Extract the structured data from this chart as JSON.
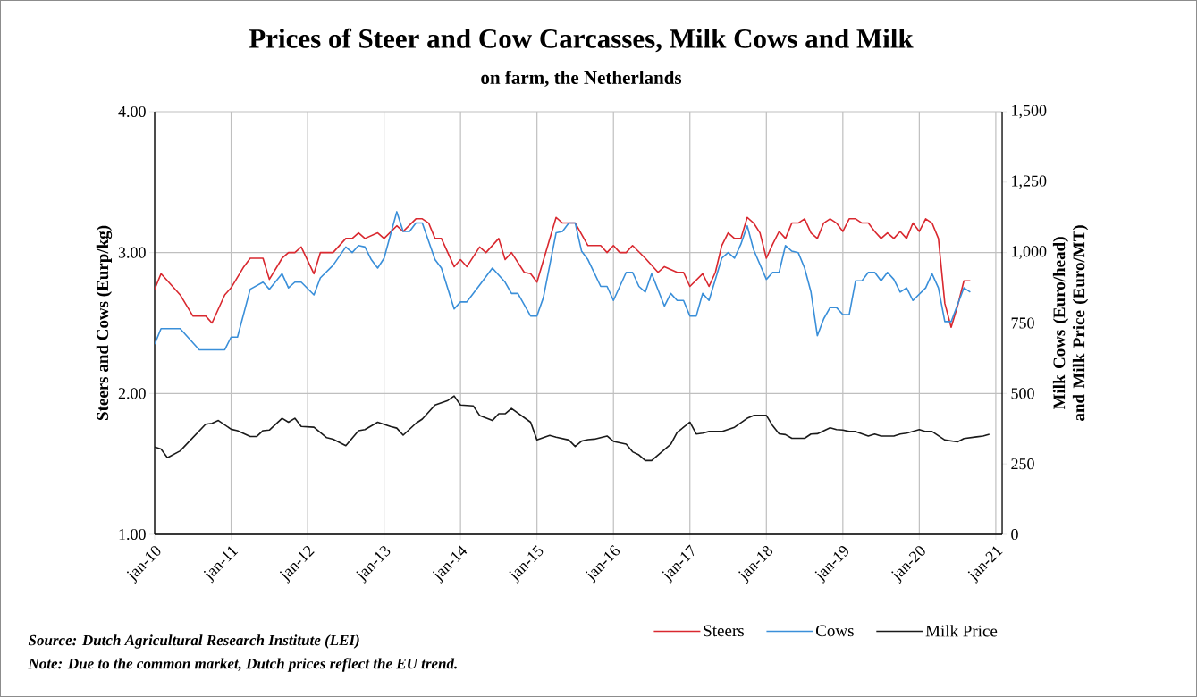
{
  "chart_data": {
    "type": "line",
    "title": "Prices of Steer and Cow Carcasses, Milk Cows and Milk",
    "subtitle": "on farm, the Netherlands",
    "ylabel": "Steers and Cows (Eurp/kg)",
    "y2label": "Milk Cows (Euro/head) and Milk Price (Euro/MT)",
    "xlim": [
      "2010-01",
      "2021-02"
    ],
    "xticks": [
      {
        "value": "2010-01",
        "label": "jan-10"
      },
      {
        "value": "2011-01",
        "label": "jan-11"
      },
      {
        "value": "2012-01",
        "label": "jan-12"
      },
      {
        "value": "2013-01",
        "label": "jan-13"
      },
      {
        "value": "2014-01",
        "label": "jan-14"
      },
      {
        "value": "2015-01",
        "label": "jan-15"
      },
      {
        "value": "2016-01",
        "label": "jan-16"
      },
      {
        "value": "2017-01",
        "label": "jan-17"
      },
      {
        "value": "2018-01",
        "label": "jan-18"
      },
      {
        "value": "2019-01",
        "label": "jan-19"
      },
      {
        "value": "2020-01",
        "label": "jan-20"
      },
      {
        "value": "2021-01",
        "label": "jan-21"
      }
    ],
    "ylim": [
      1,
      4
    ],
    "yticks": [
      {
        "value": 1,
        "label": "1.00"
      },
      {
        "value": 2,
        "label": "2.00"
      },
      {
        "value": 3,
        "label": "3.00"
      },
      {
        "value": 4,
        "label": "4.00"
      }
    ],
    "y2lim": [
      0,
      1500
    ],
    "y2ticks": [
      0,
      250,
      500,
      750,
      {
        "value": 1000,
        "label": "1,000"
      },
      {
        "value": 1250,
        "label": "1,250"
      },
      {
        "value": 1500,
        "label": "1,500"
      }
    ],
    "grid": true,
    "legend": "bottom right",
    "marker": "none",
    "line_style": "solid",
    "series": [
      {
        "name": "Steers",
        "color": "#d9282f",
        "x": [
          "2010-01",
          "2010-02",
          "2010-04",
          "2010-05",
          "2010-07",
          "2010-09",
          "2010-10",
          "2010-12",
          "2011-01",
          "2011-03",
          "2011-04",
          "2011-06",
          "2011-07",
          "2011-09",
          "2011-10",
          "2011-11",
          "2011-12",
          "2012-02",
          "2012-03",
          "2012-05",
          "2012-07",
          "2012-08",
          "2012-09",
          "2012-10",
          "2012-12",
          "2013-01",
          "2013-03",
          "2013-04",
          "2013-06",
          "2013-07",
          "2013-08",
          "2013-09",
          "2013-10",
          "2013-12",
          "2014-01",
          "2014-02",
          "2014-04",
          "2014-05",
          "2014-07",
          "2014-08",
          "2014-09",
          "2014-11",
          "2014-12",
          "2015-01",
          "2015-04",
          "2015-05",
          "2015-07",
          "2015-09",
          "2015-11",
          "2015-12",
          "2016-01",
          "2016-02",
          "2016-03",
          "2016-04",
          "2016-06",
          "2016-08",
          "2016-09",
          "2016-11",
          "2016-12",
          "2017-01",
          "2017-03",
          "2017-04",
          "2017-05",
          "2017-06",
          "2017-07",
          "2017-08",
          "2017-09",
          "2017-10",
          "2017-11",
          "2017-12",
          "2018-01",
          "2018-02",
          "2018-03",
          "2018-04",
          "2018-05",
          "2018-06",
          "2018-07",
          "2018-08",
          "2018-09",
          "2018-10",
          "2018-11",
          "2018-12",
          "2019-01",
          "2019-02",
          "2019-03",
          "2019-04",
          "2019-05",
          "2019-06",
          "2019-07",
          "2019-08",
          "2019-09",
          "2019-10",
          "2019-11",
          "2019-12",
          "2020-01",
          "2020-02",
          "2020-03",
          "2020-04",
          "2020-05",
          "2020-06",
          "2020-07",
          "2020-08",
          "2020-09"
        ],
        "values": [
          2.74,
          2.85,
          2.75,
          2.7,
          2.55,
          2.55,
          2.5,
          2.7,
          2.75,
          2.9,
          2.96,
          2.96,
          2.81,
          2.96,
          3.0,
          3.0,
          3.04,
          2.85,
          3.0,
          3.0,
          3.1,
          3.1,
          3.14,
          3.1,
          3.14,
          3.1,
          3.19,
          3.15,
          3.24,
          3.24,
          3.21,
          3.1,
          3.1,
          2.9,
          2.95,
          2.9,
          3.04,
          3.0,
          3.1,
          2.95,
          3.0,
          2.86,
          2.85,
          2.79,
          3.25,
          3.21,
          3.21,
          3.05,
          3.05,
          3.0,
          3.05,
          3.0,
          3.0,
          3.05,
          2.96,
          2.86,
          2.9,
          2.86,
          2.86,
          2.76,
          2.85,
          2.76,
          2.86,
          3.05,
          3.14,
          3.1,
          3.1,
          3.25,
          3.21,
          3.14,
          2.96,
          3.06,
          3.15,
          3.1,
          3.21,
          3.21,
          3.24,
          3.14,
          3.1,
          3.21,
          3.24,
          3.21,
          3.15,
          3.24,
          3.24,
          3.21,
          3.21,
          3.15,
          3.1,
          3.14,
          3.1,
          3.15,
          3.1,
          3.21,
          3.15,
          3.24,
          3.21,
          3.1,
          2.64,
          2.47,
          2.62,
          2.8,
          2.8
        ]
      },
      {
        "name": "Cows",
        "color": "#3a8fd9",
        "x": [
          "2010-01",
          "2010-02",
          "2010-05",
          "2010-08",
          "2010-12",
          "2011-01",
          "2011-02",
          "2011-04",
          "2011-06",
          "2011-07",
          "2011-09",
          "2011-10",
          "2011-11",
          "2011-12",
          "2012-02",
          "2012-03",
          "2012-05",
          "2012-07",
          "2012-08",
          "2012-09",
          "2012-10",
          "2012-11",
          "2012-12",
          "2013-01",
          "2013-03",
          "2013-04",
          "2013-05",
          "2013-06",
          "2013-07",
          "2013-09",
          "2013-10",
          "2013-12",
          "2014-01",
          "2014-02",
          "2014-04",
          "2014-06",
          "2014-08",
          "2014-09",
          "2014-10",
          "2014-12",
          "2015-01",
          "2015-02",
          "2015-04",
          "2015-05",
          "2015-06",
          "2015-07",
          "2015-08",
          "2015-09",
          "2015-11",
          "2015-12",
          "2016-01",
          "2016-03",
          "2016-04",
          "2016-05",
          "2016-06",
          "2016-07",
          "2016-09",
          "2016-10",
          "2016-11",
          "2016-12",
          "2017-01",
          "2017-02",
          "2017-03",
          "2017-04",
          "2017-06",
          "2017-07",
          "2017-08",
          "2017-09",
          "2017-10",
          "2017-11",
          "2018-01",
          "2018-02",
          "2018-03",
          "2018-04",
          "2018-05",
          "2018-06",
          "2018-07",
          "2018-08",
          "2018-09",
          "2018-10",
          "2018-11",
          "2018-12",
          "2019-01",
          "2019-02",
          "2019-03",
          "2019-04",
          "2019-05",
          "2019-06",
          "2019-07",
          "2019-08",
          "2019-09",
          "2019-10",
          "2019-11",
          "2019-12",
          "2020-02",
          "2020-03",
          "2020-04",
          "2020-05",
          "2020-06",
          "2020-08",
          "2020-09"
        ],
        "values": [
          2.35,
          2.46,
          2.46,
          2.31,
          2.31,
          2.4,
          2.4,
          2.74,
          2.79,
          2.74,
          2.85,
          2.75,
          2.79,
          2.79,
          2.7,
          2.82,
          2.91,
          3.04,
          3.0,
          3.05,
          3.04,
          2.95,
          2.89,
          2.96,
          3.29,
          3.15,
          3.15,
          3.21,
          3.21,
          2.95,
          2.89,
          2.6,
          2.65,
          2.65,
          2.77,
          2.89,
          2.79,
          2.71,
          2.71,
          2.55,
          2.55,
          2.68,
          3.14,
          3.15,
          3.21,
          3.21,
          3.01,
          2.95,
          2.76,
          2.76,
          2.66,
          2.86,
          2.86,
          2.76,
          2.72,
          2.85,
          2.62,
          2.71,
          2.66,
          2.66,
          2.55,
          2.55,
          2.71,
          2.66,
          2.96,
          3.0,
          2.96,
          3.06,
          3.19,
          3.02,
          2.81,
          2.86,
          2.86,
          3.05,
          3.01,
          3.0,
          2.89,
          2.72,
          2.41,
          2.53,
          2.61,
          2.61,
          2.56,
          2.56,
          2.8,
          2.8,
          2.86,
          2.86,
          2.8,
          2.86,
          2.81,
          2.72,
          2.75,
          2.66,
          2.75,
          2.85,
          2.75,
          2.51,
          2.51,
          2.75,
          2.72
        ]
      },
      {
        "name": "Milk Price",
        "color": "#1a1a1a",
        "axis": "y2",
        "x": [
          "2010-01",
          "2010-02",
          "2010-03",
          "2010-05",
          "2010-09",
          "2010-10",
          "2010-11",
          "2011-01",
          "2011-02",
          "2011-04",
          "2011-05",
          "2011-06",
          "2011-07",
          "2011-09",
          "2011-10",
          "2011-11",
          "2011-12",
          "2012-02",
          "2012-04",
          "2012-05",
          "2012-07",
          "2012-09",
          "2012-10",
          "2012-12",
          "2013-02",
          "2013-03",
          "2013-04",
          "2013-06",
          "2013-07",
          "2013-09",
          "2013-11",
          "2013-12",
          "2014-01",
          "2014-03",
          "2014-04",
          "2014-06",
          "2014-07",
          "2014-08",
          "2014-09",
          "2014-12",
          "2015-01",
          "2015-03",
          "2015-04",
          "2015-06",
          "2015-07",
          "2015-08",
          "2015-09",
          "2015-10",
          "2015-12",
          "2016-01",
          "2016-03",
          "2016-04",
          "2016-05",
          "2016-06",
          "2016-07",
          "2016-09",
          "2016-10",
          "2016-11",
          "2017-01",
          "2017-02",
          "2017-03",
          "2017-04",
          "2017-06",
          "2017-08",
          "2017-10",
          "2017-11",
          "2018-01",
          "2018-02",
          "2018-03",
          "2018-04",
          "2018-05",
          "2018-07",
          "2018-08",
          "2018-09",
          "2018-11",
          "2018-12",
          "2019-01",
          "2019-02",
          "2019-03",
          "2019-05",
          "2019-06",
          "2019-07",
          "2019-09",
          "2019-10",
          "2019-11",
          "2020-01",
          "2020-02",
          "2020-03",
          "2020-05",
          "2020-07",
          "2020-08",
          "2020-10",
          "2020-11",
          "2020-12"
        ],
        "values": [
          310,
          303,
          272,
          296,
          391,
          394,
          404,
          373,
          368,
          347,
          347,
          368,
          370,
          412,
          398,
          412,
          383,
          380,
          343,
          338,
          315,
          368,
          372,
          398,
          383,
          377,
          352,
          394,
          409,
          459,
          475,
          491,
          459,
          456,
          422,
          404,
          428,
          428,
          447,
          398,
          335,
          351,
          345,
          335,
          312,
          331,
          336,
          338,
          349,
          330,
          320,
          293,
          282,
          262,
          262,
          301,
          320,
          362,
          398,
          356,
          359,
          365,
          365,
          380,
          412,
          422,
          422,
          385,
          357,
          354,
          341,
          341,
          356,
          357,
          378,
          372,
          370,
          365,
          365,
          349,
          356,
          349,
          349,
          356,
          359,
          372,
          365,
          365,
          335,
          328,
          340,
          346,
          349,
          355
        ]
      }
    ],
    "annotations": [
      "Source: Dutch Agricultural Research Institute (LEI)",
      "Note: Due to the common market, Dutch prices reflect the EU trend."
    ]
  }
}
